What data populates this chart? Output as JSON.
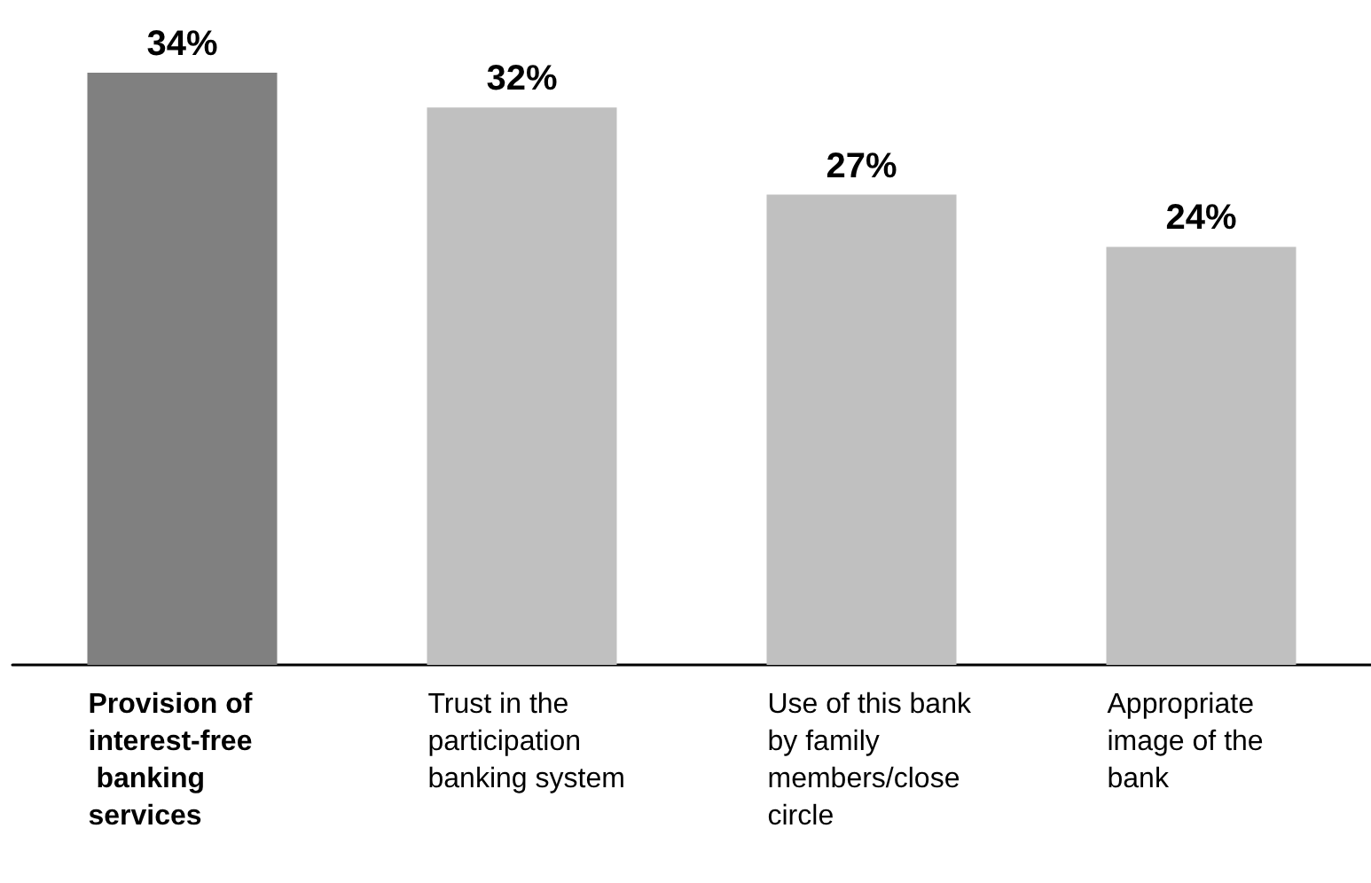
{
  "chart_data": {
    "type": "bar",
    "categories": [
      "Provision of interest-free banking services",
      "Trust in the participation banking system",
      "Use of this bank by family members/close circle",
      "Appropriate image of the bank"
    ],
    "values": [
      34,
      32,
      27,
      24
    ],
    "colors": [
      "#808080",
      "#c0c0c0",
      "#c0c0c0",
      "#c0c0c0"
    ],
    "value_labels": [
      "34%",
      "32%",
      "27%",
      "24%"
    ]
  }
}
